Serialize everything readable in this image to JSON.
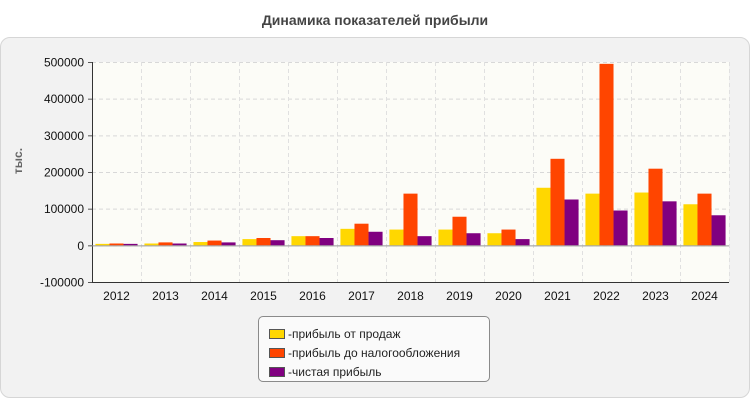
{
  "title": "Динамика показателей прибыли",
  "legend_prefix": "- ",
  "chart_data": {
    "type": "bar",
    "title": "Динамика показателей прибыли",
    "ylabel": "тыс.",
    "xlabel": "",
    "categories": [
      "2012",
      "2013",
      "2014",
      "2015",
      "2016",
      "2017",
      "2018",
      "2019",
      "2020",
      "2021",
      "2022",
      "2023",
      "2024"
    ],
    "ylim": [
      -100000,
      500000
    ],
    "yticks": [
      -100000,
      0,
      100000,
      200000,
      300000,
      400000,
      500000
    ],
    "grid": true,
    "legend_position": "bottom",
    "series": [
      {
        "name": "прибыль от продаж",
        "color": "#ffd700",
        "values": [
          4000,
          5000,
          9000,
          17000,
          25000,
          45000,
          43000,
          43000,
          33000,
          157000,
          141000,
          144000,
          112000
        ]
      },
      {
        "name": "прибыль до налогообложения",
        "color": "#ff4500",
        "values": [
          5000,
          8000,
          13000,
          20000,
          25000,
          59000,
          141000,
          78000,
          43000,
          236000,
          495000,
          209000,
          141000
        ]
      },
      {
        "name": "чистая прибыль",
        "color": "#800080",
        "values": [
          4000,
          5000,
          8000,
          14000,
          20000,
          37000,
          25000,
          33000,
          17000,
          125000,
          95000,
          120000,
          82000
        ]
      }
    ]
  }
}
